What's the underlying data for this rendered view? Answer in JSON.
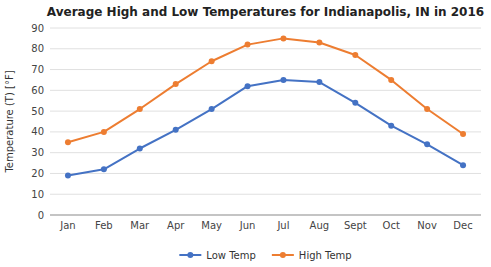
{
  "chart_data": {
    "type": "line",
    "title": "Average High and Low Temperatures for Indianapolis, IN in 2016",
    "categories": [
      "Jan",
      "Feb",
      "Mar",
      "Apr",
      "May",
      "Jun",
      "Jul",
      "Aug",
      "Sept",
      "Oct",
      "Nov",
      "Dec"
    ],
    "series": [
      {
        "name": "Low Temp",
        "color": "#4472C4",
        "marker": "circle",
        "values": [
          19,
          22,
          32,
          41,
          51,
          62,
          65,
          64,
          54,
          43,
          34,
          24
        ]
      },
      {
        "name": "High Temp",
        "color": "#ED7D31",
        "marker": "circle",
        "values": [
          35,
          40,
          51,
          63,
          74,
          82,
          85,
          83,
          77,
          65,
          51,
          39
        ]
      }
    ],
    "ylabel": "Temperature (T) [°F]",
    "ylim": [
      0,
      90
    ],
    "yticks": [
      0,
      10,
      20,
      30,
      40,
      50,
      60,
      70,
      80,
      90
    ],
    "grid": true,
    "legend": "bottom"
  }
}
